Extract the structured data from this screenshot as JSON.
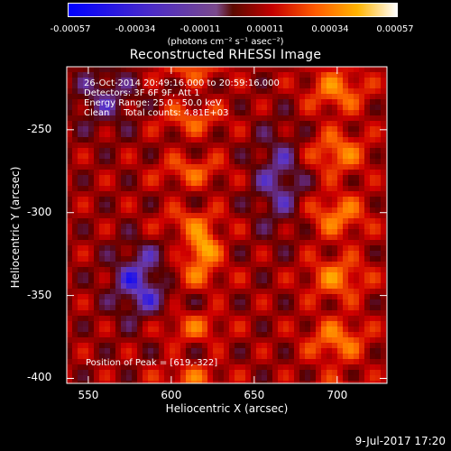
{
  "colorbar": {
    "ticks": [
      "-0.00057",
      "-0.00034",
      "-0.00011",
      "0.00011",
      "0.00034",
      "0.00057"
    ],
    "units": "(photons cm⁻² s⁻¹ asec⁻²)"
  },
  "info": {
    "time_range": "26-Oct-2014 20:49:16.000 to 20:59:16.000",
    "detectors": "Detectors: 3F 6F 9F, Att 1",
    "energy": "Energy Range: 25.0 - 50.0 keV",
    "clean": "Clean     Total counts: 4.81E+03"
  },
  "peak": "Position of Peak = [619,-322]",
  "timestamp": "9-Jul-2017 17:20",
  "chart_data": {
    "type": "heatmap",
    "title": "Reconstructed RHESSI Image",
    "xlabel": "Heliocentric X (arcsec)",
    "ylabel": "Heliocentric Y (arcsec)",
    "xlim": [
      537,
      730
    ],
    "ylim": [
      -403,
      -212
    ],
    "x_ticks": [
      550,
      600,
      650,
      700
    ],
    "y_ticks": [
      -250,
      -300,
      -350,
      -400
    ],
    "color_range": [
      -0.00057,
      0.00057
    ],
    "colormap": [
      "#0000ff",
      "#6a3cb8",
      "#550000",
      "#d00000",
      "#ff6a00",
      "#ffc000",
      "#ffffff"
    ],
    "peak": [
      619,
      -322
    ]
  }
}
